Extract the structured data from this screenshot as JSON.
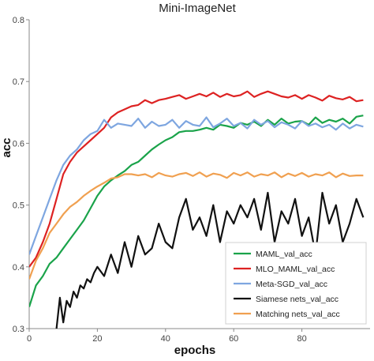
{
  "chart_data": {
    "type": "line",
    "title": "Mini-ImageNet",
    "xlabel": "epochs",
    "ylabel": "acc",
    "xlim": [
      0,
      100
    ],
    "ylim": [
      0.3,
      0.8
    ],
    "xticks": [
      0,
      20,
      40,
      60,
      80
    ],
    "yticks": [
      0.3,
      0.4,
      0.5,
      0.6,
      0.7,
      0.8
    ],
    "grid": false,
    "legend_position": "bottom-right",
    "series": [
      {
        "name": "MAML_val_acc",
        "color": "#1aa34a",
        "x": [
          0,
          2,
          4,
          6,
          8,
          10,
          12,
          14,
          16,
          18,
          20,
          22,
          24,
          26,
          28,
          30,
          32,
          34,
          36,
          38,
          40,
          42,
          44,
          46,
          48,
          50,
          52,
          54,
          56,
          58,
          60,
          62,
          64,
          66,
          68,
          70,
          72,
          74,
          76,
          78,
          80,
          82,
          84,
          86,
          88,
          90,
          92,
          94,
          96,
          98
        ],
        "y": [
          0.335,
          0.37,
          0.385,
          0.405,
          0.415,
          0.43,
          0.445,
          0.46,
          0.475,
          0.495,
          0.515,
          0.53,
          0.54,
          0.548,
          0.555,
          0.565,
          0.57,
          0.58,
          0.59,
          0.598,
          0.605,
          0.61,
          0.618,
          0.62,
          0.62,
          0.622,
          0.625,
          0.622,
          0.63,
          0.628,
          0.625,
          0.633,
          0.63,
          0.635,
          0.628,
          0.638,
          0.63,
          0.64,
          0.632,
          0.635,
          0.636,
          0.63,
          0.642,
          0.633,
          0.638,
          0.635,
          0.64,
          0.632,
          0.643,
          0.645
        ]
      },
      {
        "name": "MLO_MAML_val_acc",
        "color": "#dd2222",
        "x": [
          0,
          2,
          4,
          6,
          8,
          10,
          12,
          14,
          16,
          18,
          20,
          22,
          24,
          26,
          28,
          30,
          32,
          34,
          36,
          38,
          40,
          42,
          44,
          46,
          48,
          50,
          52,
          54,
          56,
          58,
          60,
          62,
          64,
          66,
          68,
          70,
          72,
          74,
          76,
          78,
          80,
          82,
          84,
          86,
          88,
          90,
          92,
          94,
          96,
          98
        ],
        "y": [
          0.4,
          0.415,
          0.44,
          0.47,
          0.51,
          0.55,
          0.57,
          0.585,
          0.595,
          0.605,
          0.615,
          0.625,
          0.642,
          0.65,
          0.655,
          0.66,
          0.662,
          0.67,
          0.665,
          0.67,
          0.672,
          0.675,
          0.678,
          0.672,
          0.676,
          0.68,
          0.676,
          0.682,
          0.675,
          0.68,
          0.676,
          0.678,
          0.684,
          0.675,
          0.68,
          0.684,
          0.68,
          0.676,
          0.674,
          0.678,
          0.672,
          0.678,
          0.674,
          0.669,
          0.677,
          0.673,
          0.671,
          0.675,
          0.668,
          0.67
        ]
      },
      {
        "name": "Meta-SGD_val_acc",
        "color": "#7ea6e0",
        "x": [
          0,
          2,
          4,
          6,
          8,
          10,
          12,
          14,
          16,
          18,
          20,
          22,
          24,
          26,
          28,
          30,
          32,
          34,
          36,
          38,
          40,
          42,
          44,
          46,
          48,
          50,
          52,
          54,
          56,
          58,
          60,
          62,
          64,
          66,
          68,
          70,
          72,
          74,
          76,
          78,
          80,
          82,
          84,
          86,
          88,
          90,
          92,
          94,
          96,
          98
        ],
        "y": [
          0.42,
          0.45,
          0.48,
          0.51,
          0.54,
          0.565,
          0.58,
          0.59,
          0.605,
          0.615,
          0.62,
          0.638,
          0.625,
          0.632,
          0.63,
          0.628,
          0.64,
          0.625,
          0.635,
          0.628,
          0.63,
          0.638,
          0.625,
          0.636,
          0.63,
          0.628,
          0.642,
          0.626,
          0.632,
          0.64,
          0.628,
          0.633,
          0.624,
          0.638,
          0.63,
          0.636,
          0.626,
          0.634,
          0.63,
          0.624,
          0.636,
          0.628,
          0.632,
          0.626,
          0.63,
          0.622,
          0.632,
          0.624,
          0.63,
          0.627
        ]
      },
      {
        "name": "Siamese nets_val_acc",
        "color": "#111111",
        "x": [
          8,
          9,
          10,
          11,
          12,
          13,
          14,
          15,
          16,
          17,
          18,
          19,
          20,
          22,
          24,
          26,
          28,
          30,
          32,
          34,
          36,
          38,
          40,
          42,
          44,
          46,
          48,
          50,
          52,
          54,
          56,
          58,
          60,
          62,
          64,
          66,
          68,
          70,
          72,
          74,
          76,
          78,
          80,
          82,
          84,
          86,
          88,
          90,
          92,
          94,
          96,
          98
        ],
        "y": [
          0.3,
          0.35,
          0.31,
          0.345,
          0.335,
          0.36,
          0.35,
          0.37,
          0.365,
          0.38,
          0.375,
          0.39,
          0.4,
          0.385,
          0.42,
          0.39,
          0.44,
          0.4,
          0.45,
          0.42,
          0.43,
          0.47,
          0.44,
          0.43,
          0.48,
          0.51,
          0.46,
          0.48,
          0.45,
          0.5,
          0.44,
          0.49,
          0.47,
          0.5,
          0.48,
          0.51,
          0.46,
          0.52,
          0.44,
          0.49,
          0.47,
          0.51,
          0.45,
          0.48,
          0.42,
          0.52,
          0.47,
          0.5,
          0.44,
          0.47,
          0.51,
          0.48
        ]
      },
      {
        "name": "Matching nets_val_acc",
        "color": "#f0a050",
        "x": [
          0,
          2,
          4,
          6,
          8,
          10,
          12,
          14,
          16,
          18,
          20,
          22,
          24,
          26,
          28,
          30,
          32,
          34,
          36,
          38,
          40,
          42,
          44,
          46,
          48,
          50,
          52,
          54,
          56,
          58,
          60,
          62,
          64,
          66,
          68,
          70,
          72,
          74,
          76,
          78,
          80,
          82,
          84,
          86,
          88,
          90,
          92,
          94,
          96,
          98
        ],
        "y": [
          0.38,
          0.41,
          0.43,
          0.455,
          0.47,
          0.485,
          0.497,
          0.505,
          0.515,
          0.523,
          0.53,
          0.536,
          0.543,
          0.545,
          0.55,
          0.55,
          0.548,
          0.55,
          0.545,
          0.552,
          0.548,
          0.546,
          0.55,
          0.552,
          0.547,
          0.553,
          0.546,
          0.551,
          0.549,
          0.544,
          0.552,
          0.548,
          0.553,
          0.546,
          0.55,
          0.548,
          0.553,
          0.545,
          0.551,
          0.547,
          0.552,
          0.546,
          0.55,
          0.548,
          0.553,
          0.545,
          0.551,
          0.547,
          0.548,
          0.548
        ]
      }
    ]
  }
}
